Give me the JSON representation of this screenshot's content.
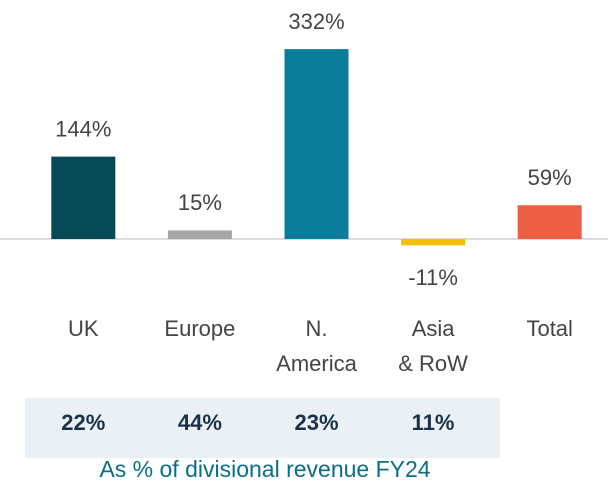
{
  "chart_data": {
    "type": "bar",
    "categories": [
      [
        "UK"
      ],
      [
        "Europe"
      ],
      [
        "N.",
        "America"
      ],
      [
        "Asia",
        "& RoW"
      ],
      [
        "Total"
      ]
    ],
    "values": [
      144,
      15,
      332,
      -11,
      59
    ],
    "value_labels": [
      "144%",
      "15%",
      "332%",
      "-11%",
      "59%"
    ],
    "colors": [
      "#054957",
      "#a6a6a6",
      "#0a7d9a",
      "#f5c000",
      "#ec5f43"
    ],
    "ylim": [
      -30,
      360
    ],
    "divisional_shares": [
      "22%",
      "44%",
      "23%",
      "11%"
    ],
    "footnote": "As % of divisional revenue FY24"
  }
}
